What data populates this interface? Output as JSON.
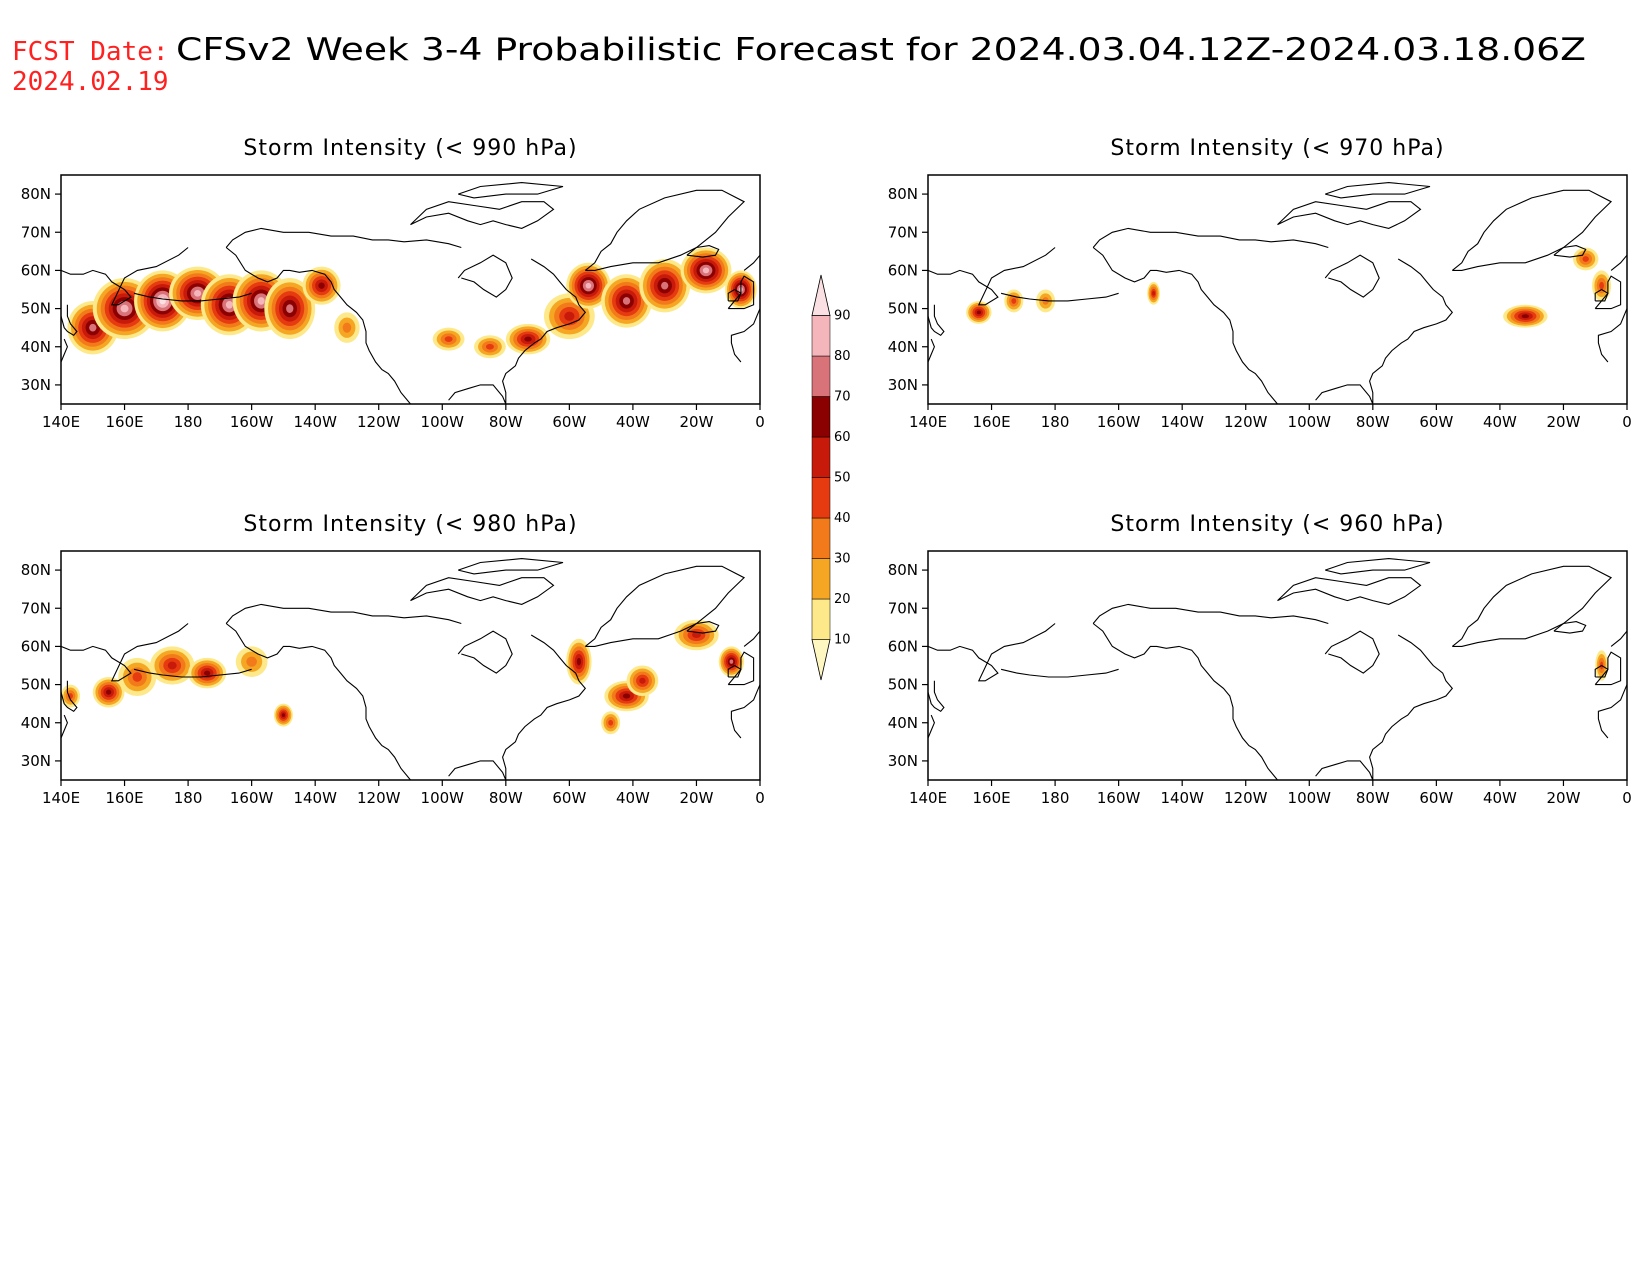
{
  "header": {
    "label": "FCST Date:",
    "date": "2024.02.19",
    "title": "CFSv2 Week 3-4 Probabilistic Forecast for 2024.03.04.12Z-2024.03.18.06Z"
  },
  "axes": {
    "lon_labels": [
      "140E",
      "160E",
      "180",
      "160W",
      "140W",
      "120W",
      "100W",
      "80W",
      "60W",
      "40W",
      "20W",
      "0"
    ],
    "lon_values": [
      140,
      160,
      180,
      200,
      220,
      240,
      260,
      280,
      300,
      320,
      340,
      360
    ],
    "lat_labels": [
      "30N",
      "40N",
      "50N",
      "60N",
      "70N",
      "80N"
    ],
    "lat_values": [
      30,
      40,
      50,
      60,
      70,
      80
    ],
    "lon_range": [
      140,
      360
    ],
    "lat_range": [
      25,
      85
    ]
  },
  "colorbar": {
    "levels": [
      "10",
      "20",
      "30",
      "40",
      "50",
      "60",
      "70",
      "80",
      "90"
    ],
    "colors": [
      "#fff7c2",
      "#fde98a",
      "#f5a623",
      "#f27a1a",
      "#e63a10",
      "#c81a0a",
      "#8b0000",
      "#d9737a",
      "#f4b6bb",
      "#fbe0e3"
    ]
  },
  "chart_data": {
    "type": "heatmap",
    "panels": [
      {
        "id": "p990",
        "title": "Storm Intensity (< 990 hPa)",
        "blobs": [
          {
            "lon": 150,
            "lat": 45,
            "rx": 8,
            "ry": 7,
            "p": 75
          },
          {
            "lon": 160,
            "lat": 50,
            "rx": 10,
            "ry": 8,
            "p": 85
          },
          {
            "lon": 172,
            "lat": 52,
            "rx": 9,
            "ry": 8,
            "p": 90
          },
          {
            "lon": 183,
            "lat": 54,
            "rx": 9,
            "ry": 7,
            "p": 85
          },
          {
            "lon": 193,
            "lat": 51,
            "rx": 9,
            "ry": 8,
            "p": 85
          },
          {
            "lon": 203,
            "lat": 52,
            "rx": 9,
            "ry": 8,
            "p": 80
          },
          {
            "lon": 212,
            "lat": 50,
            "rx": 8,
            "ry": 8,
            "p": 75
          },
          {
            "lon": 222,
            "lat": 56,
            "rx": 6,
            "ry": 5,
            "p": 60
          },
          {
            "lon": 230,
            "lat": 45,
            "rx": 4,
            "ry": 4,
            "p": 35
          },
          {
            "lon": 262,
            "lat": 42,
            "rx": 5,
            "ry": 3,
            "p": 40
          },
          {
            "lon": 275,
            "lat": 40,
            "rx": 5,
            "ry": 3,
            "p": 45
          },
          {
            "lon": 287,
            "lat": 42,
            "rx": 7,
            "ry": 4,
            "p": 65
          },
          {
            "lon": 300,
            "lat": 48,
            "rx": 8,
            "ry": 6,
            "p": 55
          },
          {
            "lon": 306,
            "lat": 56,
            "rx": 7,
            "ry": 6,
            "p": 80
          },
          {
            "lon": 318,
            "lat": 52,
            "rx": 8,
            "ry": 7,
            "p": 70
          },
          {
            "lon": 330,
            "lat": 56,
            "rx": 8,
            "ry": 7,
            "p": 75
          },
          {
            "lon": 343,
            "lat": 60,
            "rx": 8,
            "ry": 6,
            "p": 80
          },
          {
            "lon": 354,
            "lat": 55,
            "rx": 5,
            "ry": 5,
            "p": 80
          }
        ]
      },
      {
        "id": "p970",
        "title": "Storm Intensity (< 970 hPa)",
        "blobs": [
          {
            "lon": 156,
            "lat": 49,
            "rx": 4,
            "ry": 3,
            "p": 60
          },
          {
            "lon": 167,
            "lat": 52,
            "rx": 3,
            "ry": 3,
            "p": 40
          },
          {
            "lon": 177,
            "lat": 52,
            "rx": 3,
            "ry": 3,
            "p": 35
          },
          {
            "lon": 211,
            "lat": 54,
            "rx": 2,
            "ry": 3,
            "p": 55
          },
          {
            "lon": 328,
            "lat": 48,
            "rx": 7,
            "ry": 3,
            "p": 65
          },
          {
            "lon": 352,
            "lat": 56,
            "rx": 3,
            "ry": 4,
            "p": 45
          },
          {
            "lon": 347,
            "lat": 63,
            "rx": 4,
            "ry": 3,
            "p": 40
          }
        ]
      },
      {
        "id": "p980",
        "title": "Storm Intensity (< 980 hPa)",
        "blobs": [
          {
            "lon": 143,
            "lat": 47,
            "rx": 3,
            "ry": 3,
            "p": 40
          },
          {
            "lon": 155,
            "lat": 48,
            "rx": 5,
            "ry": 4,
            "p": 65
          },
          {
            "lon": 164,
            "lat": 52,
            "rx": 6,
            "ry": 5,
            "p": 45
          },
          {
            "lon": 175,
            "lat": 55,
            "rx": 7,
            "ry": 5,
            "p": 55
          },
          {
            "lon": 186,
            "lat": 53,
            "rx": 6,
            "ry": 4,
            "p": 60
          },
          {
            "lon": 200,
            "lat": 56,
            "rx": 5,
            "ry": 4,
            "p": 35
          },
          {
            "lon": 210,
            "lat": 42,
            "rx": 3,
            "ry": 3,
            "p": 65
          },
          {
            "lon": 303,
            "lat": 56,
            "rx": 4,
            "ry": 6,
            "p": 60
          },
          {
            "lon": 318,
            "lat": 47,
            "rx": 7,
            "ry": 4,
            "p": 60
          },
          {
            "lon": 323,
            "lat": 51,
            "rx": 5,
            "ry": 4,
            "p": 55
          },
          {
            "lon": 340,
            "lat": 63,
            "rx": 7,
            "ry": 4,
            "p": 50
          },
          {
            "lon": 351,
            "lat": 56,
            "rx": 4,
            "ry": 4,
            "p": 70
          },
          {
            "lon": 313,
            "lat": 40,
            "rx": 3,
            "ry": 3,
            "p": 40
          }
        ]
      },
      {
        "id": "p960",
        "title": "Storm Intensity (< 960 hPa)",
        "blobs": [
          {
            "lon": 352,
            "lat": 55,
            "rx": 2,
            "ry": 4,
            "p": 40
          }
        ]
      }
    ]
  }
}
